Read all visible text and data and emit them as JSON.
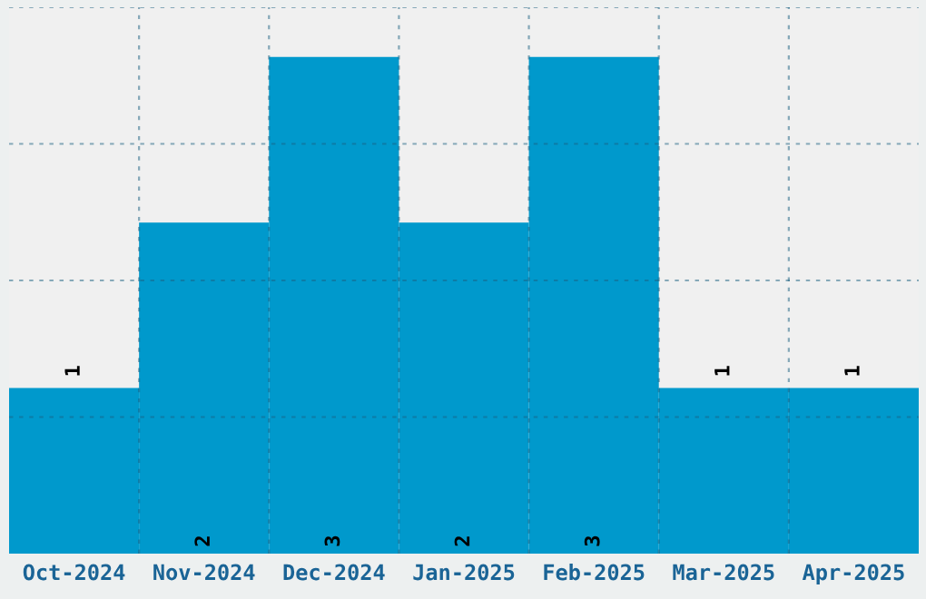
{
  "chart_data": {
    "type": "bar",
    "categories": [
      "Oct-2024",
      "Nov-2024",
      "Dec-2024",
      "Jan-2025",
      "Feb-2025",
      "Mar-2025",
      "Apr-2025"
    ],
    "values": [
      1,
      2,
      3,
      2,
      3,
      1,
      1
    ],
    "color": "#0099cc",
    "ylim": [
      0,
      3.3
    ],
    "yticks": [
      {
        "value": 0.825,
        "label": null
      },
      {
        "value": 1.65,
        "label": null
      },
      {
        "value": 2.475,
        "label": null
      },
      {
        "value": 3.3,
        "label": null
      }
    ],
    "grid": true,
    "data_labels": true,
    "tick_labels": "x"
  }
}
